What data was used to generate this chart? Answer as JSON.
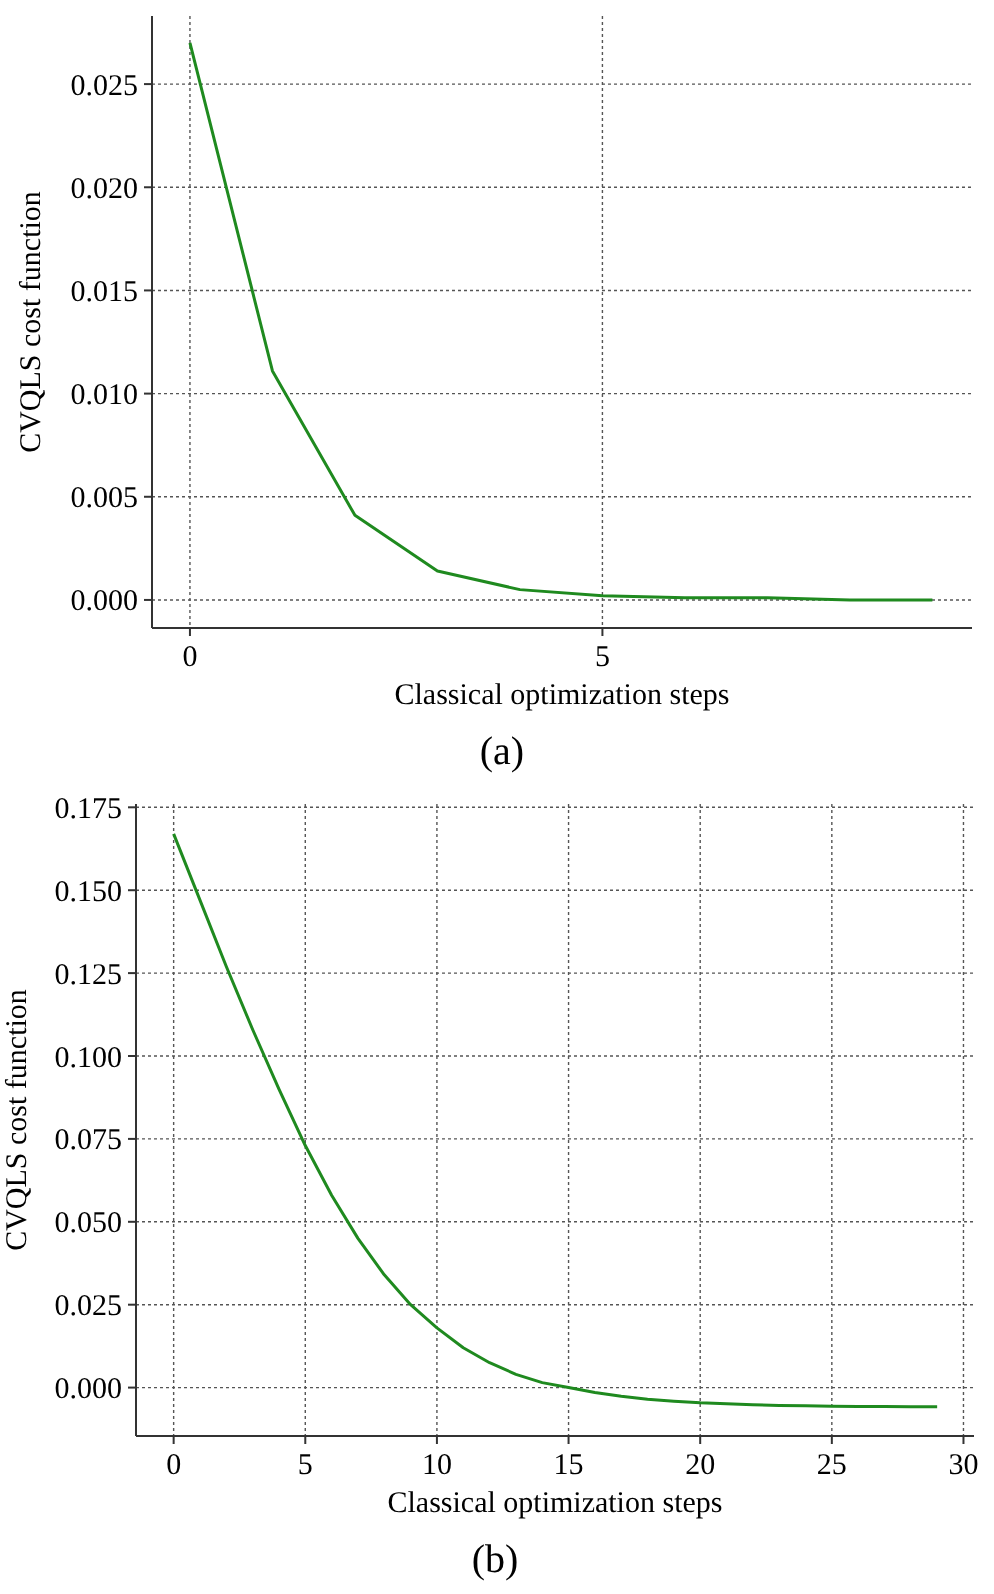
{
  "chart_data": [
    {
      "type": "line",
      "xlabel": "Classical optimization steps",
      "ylabel": "CVQLS cost function",
      "annotations": [
        "(a)"
      ],
      "x": [
        0,
        1,
        2,
        3,
        4,
        5,
        6,
        7,
        8,
        9
      ],
      "series": [
        {
          "color": "#1f8a1f",
          "values": [
            0.027,
            0.0111,
            0.0041,
            0.0014,
            0.0005,
            0.0002,
            0.0001,
            0.0001,
            0.0,
            0.0
          ]
        }
      ],
      "xlim": [
        -0.46,
        9.48
      ],
      "xticks": [
        0,
        5
      ],
      "ylim": [
        -0.00136,
        0.0283
      ],
      "yticks": [
        {
          "value": 0,
          "label": "0.000"
        },
        {
          "value": 0.005,
          "label": "0.005"
        },
        {
          "value": 0.01,
          "label": "0.010"
        },
        {
          "value": 0.015,
          "label": "0.015"
        },
        {
          "value": 0.02,
          "label": "0.020"
        },
        {
          "value": 0.025,
          "label": "0.025"
        }
      ],
      "grid": true,
      "line_style": "solid"
    },
    {
      "type": "line",
      "xlabel": "Classical optimization steps",
      "ylabel": "CVQLS cost function",
      "annotations": [
        "(b)"
      ],
      "x": [
        0,
        1,
        2,
        3,
        4,
        5,
        6,
        7,
        8,
        9,
        10,
        11,
        12,
        13,
        14,
        15,
        16,
        17,
        18,
        19,
        20,
        21,
        22,
        23,
        24,
        25,
        26,
        27,
        28,
        29
      ],
      "series": [
        {
          "color": "#1f8a1f",
          "values": [
            0.167,
            0.147,
            0.127,
            0.108,
            0.09,
            0.073,
            0.058,
            0.045,
            0.034,
            0.025,
            0.018,
            0.012,
            0.0075,
            0.004,
            0.0015,
            0.0,
            -0.0015,
            -0.0026,
            -0.0035,
            -0.0041,
            -0.0046,
            -0.0049,
            -0.0052,
            -0.0054,
            -0.0055,
            -0.0056,
            -0.0057,
            -0.0057,
            -0.0058,
            -0.0058
          ]
        }
      ],
      "xlim": [
        -1.43,
        30.4
      ],
      "xticks": [
        0,
        5,
        10,
        15,
        20,
        25,
        30
      ],
      "ylim": [
        -0.0146,
        0.176
      ],
      "yticks": [
        {
          "value": 0,
          "label": "0.000"
        },
        {
          "value": 0.025,
          "label": "0.025"
        },
        {
          "value": 0.05,
          "label": "0.050"
        },
        {
          "value": 0.075,
          "label": "0.075"
        },
        {
          "value": 0.1,
          "label": "0.100"
        },
        {
          "value": 0.125,
          "label": "0.125"
        },
        {
          "value": 0.15,
          "label": "0.150"
        },
        {
          "value": 0.175,
          "label": "0.175"
        }
      ],
      "grid": true,
      "line_style": "solid"
    }
  ]
}
